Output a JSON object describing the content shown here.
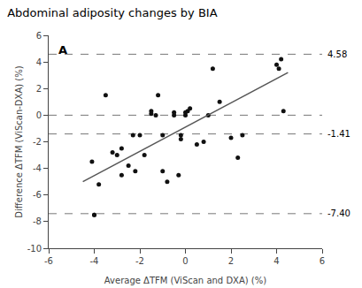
{
  "chart_data": {
    "type": "scatter",
    "title": "Abdominal adiposity changes by BIA",
    "panel_label": "A",
    "xlabel": "Average ΔTFM (ViScan and DXA) (%)",
    "ylabel": "Difference ΔTFM (ViScan-DXA) (%)",
    "xlim": [
      -6,
      6
    ],
    "ylim": [
      -10,
      6
    ],
    "xticks": [
      -6,
      -4,
      -2,
      0,
      2,
      4,
      6
    ],
    "yticks": [
      -10,
      -8,
      -6,
      -4,
      -2,
      0,
      2,
      4,
      6
    ],
    "grid": false,
    "series": [
      {
        "type": "scatter",
        "color": "#111111",
        "x": [
          -4.1,
          -4.0,
          -4.0,
          -3.8,
          -3.5,
          -3.2,
          -3.0,
          -2.8,
          -2.8,
          -2.5,
          -2.3,
          -2.2,
          -2.0,
          -1.8,
          -1.5,
          -1.5,
          -1.3,
          -1.2,
          -1.0,
          -1.0,
          -0.8,
          -0.5,
          -0.5,
          -0.3,
          -0.2,
          -0.2,
          0.0,
          0.0,
          0.1,
          0.2,
          0.5,
          0.8,
          1.0,
          1.2,
          1.5,
          2.0,
          2.3,
          2.5,
          4.0,
          4.1,
          4.2,
          4.3
        ],
        "values": [
          -3.5,
          -7.5,
          -7.5,
          -5.2,
          1.5,
          -2.8,
          -3.0,
          -2.5,
          -4.5,
          -3.8,
          -1.5,
          -4.2,
          -1.5,
          -3.0,
          0.3,
          0.1,
          0.0,
          1.5,
          -1.5,
          -4.2,
          -5.0,
          0.2,
          0.0,
          -4.5,
          -1.5,
          -1.8,
          0.0,
          0.2,
          0.3,
          0.5,
          -2.2,
          -2.0,
          0.0,
          3.5,
          1.0,
          -1.7,
          -3.2,
          -1.5,
          3.8,
          3.5,
          4.2,
          0.3
        ]
      },
      {
        "type": "line",
        "color": "#555555",
        "x": [
          -4.5,
          4.5
        ],
        "values": [
          -5.0,
          3.2
        ]
      }
    ],
    "hlines": [
      {
        "y": 4.58,
        "label": "4.58",
        "color": "#777777",
        "line_style": "dashed"
      },
      {
        "y": 0.0,
        "color": "#777777",
        "line_style": "dashed"
      },
      {
        "y": -1.41,
        "label": "-1.41",
        "color": "#777777",
        "line_style": "dashed"
      },
      {
        "y": -7.4,
        "label": "-7.40",
        "color": "#777777",
        "line_style": "dashed"
      }
    ]
  }
}
